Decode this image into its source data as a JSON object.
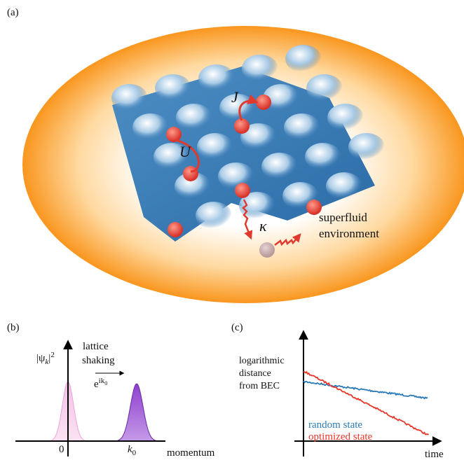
{
  "panel_a": {
    "label": "(a)",
    "U": "U",
    "J": "J",
    "kappa": "κ",
    "env_line1": "superfluid",
    "env_line2": "environment"
  },
  "panel_b": {
    "label": "(b)",
    "ylabel_pre": "|ψ",
    "ylabel_sub": "k",
    "ylabel_post": "|",
    "ylabel_sup": "2",
    "text_line1": "lattice",
    "text_line2": "shaking",
    "phase_base": "e",
    "phase_sup": "ik",
    "phase_sub": "0",
    "tick_zero": "0",
    "tick_k": "k",
    "tick_k_sub": "0",
    "xlabel": "momentum"
  },
  "panel_c": {
    "label": "(c)",
    "ylabel_line1": "logarithmic",
    "ylabel_line2": "distance",
    "ylabel_line3": "from BEC",
    "legend_random": "random state",
    "legend_optimized": "optimized state",
    "xlabel": "time"
  }
}
